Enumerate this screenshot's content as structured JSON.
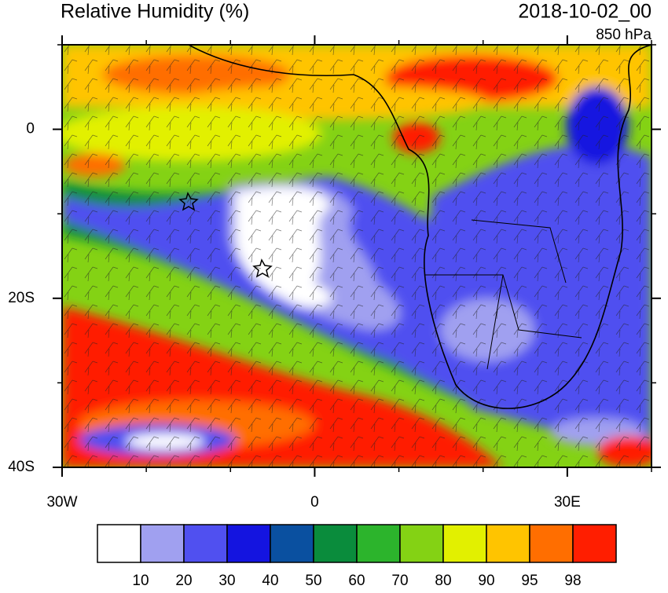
{
  "title": "Relative Humidity (%)",
  "date": "2018-10-02_00",
  "level": "850 hPa",
  "map": {
    "xlim": [
      -30,
      40
    ],
    "ylim": [
      -40,
      10
    ],
    "xticks": [
      {
        "value": -30,
        "label": "30W"
      },
      0,
      {
        "value": 30,
        "label": "30E"
      }
    ],
    "yticks": [
      0,
      {
        "value": -20,
        "label": "20S"
      },
      {
        "value": -40,
        "label": "40S"
      }
    ],
    "xminorticks": [
      -20,
      -10,
      10,
      20,
      40
    ],
    "yminorticks": [
      10,
      -10,
      -30
    ]
  },
  "colorbar": {
    "colors": [
      "#ffffff",
      "#a0a0f0",
      "#5050f0",
      "#1414e0",
      "#0a50a0",
      "#0a8c3c",
      "#2cb42c",
      "#84d214",
      "#e2f000",
      "#ffc400",
      "#ff6e00",
      "#ff1e00"
    ],
    "levels": [
      10,
      20,
      30,
      40,
      50,
      60,
      70,
      80,
      90,
      95,
      98
    ]
  }
}
